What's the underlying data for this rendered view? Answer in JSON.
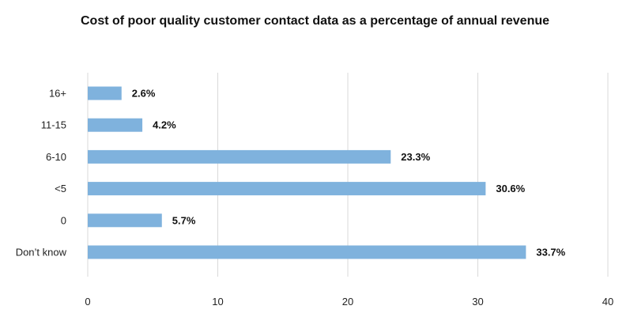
{
  "chart_data": {
    "type": "bar",
    "orientation": "horizontal",
    "title": "Cost of poor quality customer contact data as a percentage of annual revenue",
    "xlabel": "",
    "ylabel": "",
    "categories": [
      "16+",
      "11-15",
      "6-10",
      "<5",
      "0",
      "Don’t know"
    ],
    "values": [
      2.6,
      4.2,
      23.3,
      30.6,
      5.7,
      33.7
    ],
    "value_labels": [
      "2.6%",
      "4.2%",
      "23.3%",
      "30.6%",
      "5.7%",
      "33.7%"
    ],
    "xlim": [
      0,
      40
    ],
    "x_ticks": [
      0,
      10,
      20,
      30,
      40
    ],
    "x_tick_labels": [
      "0",
      "10",
      "20",
      "30",
      "40"
    ],
    "grid": "vertical",
    "legend": "none",
    "bar_color": "#7fb2dd",
    "grid_color": "#d9d9d9"
  }
}
